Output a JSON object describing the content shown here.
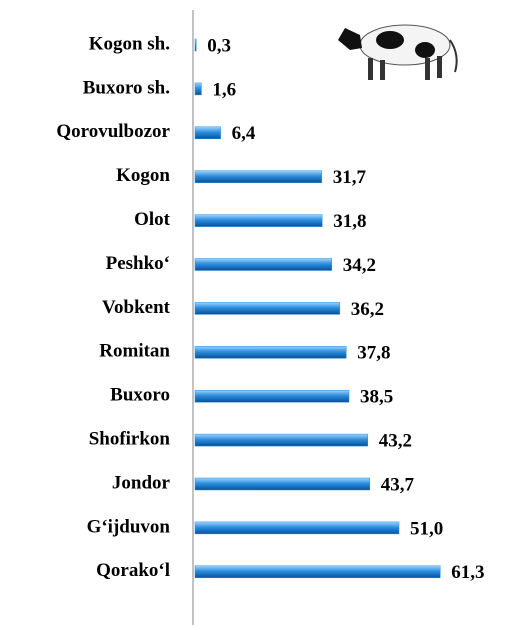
{
  "chart_data": {
    "type": "bar",
    "orientation": "horizontal",
    "categories": [
      "Kogon sh.",
      "Buxoro sh.",
      "Qorovulbozor",
      "Kogon",
      "Olot",
      "Peshko‘",
      "Vobkent",
      "Romitan",
      "Buxoro",
      "Shofirkon",
      "Jondor",
      "G‘ijduvon",
      "Qorako‘l"
    ],
    "values": [
      0.3,
      1.6,
      6.4,
      31.7,
      31.8,
      34.2,
      36.2,
      37.8,
      38.5,
      43.2,
      43.7,
      51.0,
      61.3
    ],
    "value_labels": [
      "0,3",
      "1,6",
      "6,4",
      "31,7",
      "31,8",
      "34,2",
      "36,2",
      "37,8",
      "38,5",
      "43,2",
      "43,7",
      "51,0",
      "61,3"
    ],
    "color": "#2a8fe0",
    "xlim": [
      0,
      75
    ]
  }
}
